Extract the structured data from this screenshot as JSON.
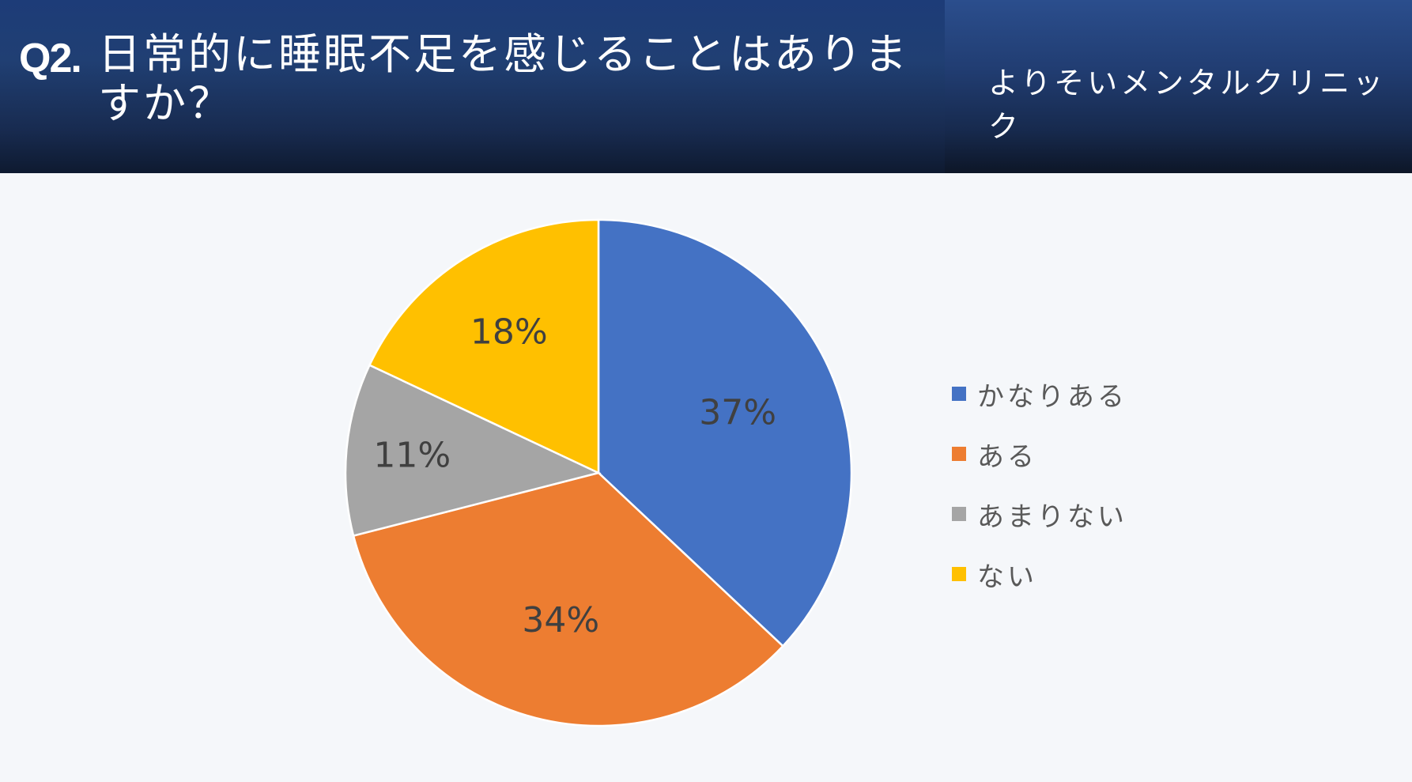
{
  "header": {
    "question_number": "Q2.",
    "question_text": "日常的に睡眠不足を感じることはありますか？",
    "clinic_name": "よりそいメンタルクリニック"
  },
  "colors": {
    "header_bg": "#1d3c78",
    "page_bg": "#f5f7fa",
    "label_text": "#404040",
    "legend_text": "#595959"
  },
  "chart_data": {
    "type": "pie",
    "title": "",
    "slices": [
      {
        "label": "かなりある",
        "value": 37,
        "display": "37%",
        "color": "#4472c4"
      },
      {
        "label": "ある",
        "value": 34,
        "display": "34%",
        "color": "#ed7d31"
      },
      {
        "label": "あまりない",
        "value": 11,
        "display": "11%",
        "color": "#a5a5a5"
      },
      {
        "label": "ない",
        "value": 18,
        "display": "18%",
        "color": "#ffc000"
      }
    ],
    "start_angle": "12 o'clock",
    "direction": "clockwise",
    "legend_position": "right"
  }
}
